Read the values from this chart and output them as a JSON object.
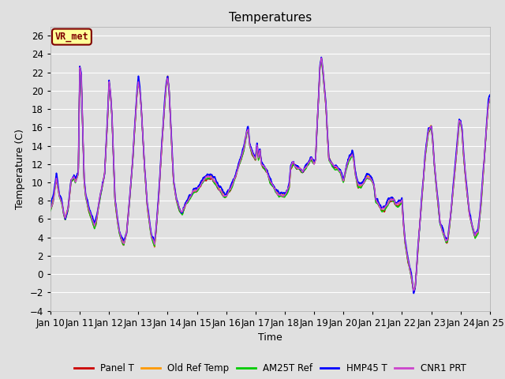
{
  "title": "Temperatures",
  "xlabel": "Time",
  "ylabel": "Temperature (C)",
  "annotation": "VR_met",
  "ylim": [
    -4,
    27
  ],
  "yticks": [
    -4,
    -2,
    0,
    2,
    4,
    6,
    8,
    10,
    12,
    14,
    16,
    18,
    20,
    22,
    24,
    26
  ],
  "xtick_labels": [
    "Jan 10",
    "Jan 11",
    "Jan 12",
    "Jan 13",
    "Jan 14",
    "Jan 15",
    "Jan 16",
    "Jan 17",
    "Jan 18",
    "Jan 19",
    "Jan 20",
    "Jan 21",
    "Jan 22",
    "Jan 23",
    "Jan 24",
    "Jan 25"
  ],
  "series_names": [
    "Panel T",
    "Old Ref Temp",
    "AM25T Ref",
    "HMP45 T",
    "CNR1 PRT"
  ],
  "series_colors": [
    "#cc0000",
    "#ff9900",
    "#00cc00",
    "#0000ff",
    "#cc44cc"
  ],
  "background_color": "#e0e0e0",
  "plot_bg_color": "#e0e0e0",
  "grid_color": "#ffffff",
  "title_fontsize": 11,
  "label_fontsize": 9,
  "tick_fontsize": 8.5
}
